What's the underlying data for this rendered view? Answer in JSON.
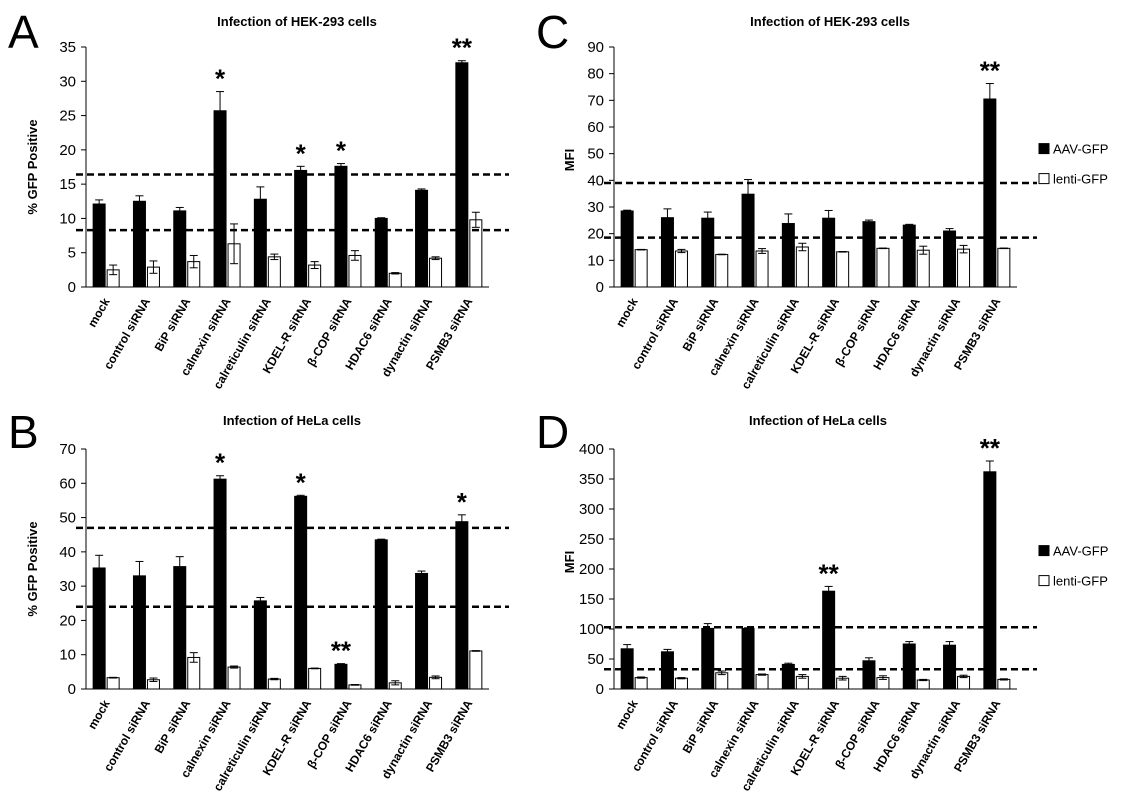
{
  "colors": {
    "aav": "#000000",
    "lenti": "#ffffff",
    "axis": "#000000",
    "dashed": "#000000"
  },
  "categories": [
    "mock",
    "control siRNA",
    "BiP siRNA",
    "calnexin siRNA",
    "calreticulin siRNA",
    "KDEL-R siRNA",
    "β-COP siRNA",
    "HDAC6 siRNA",
    "dynactin siRNA",
    "PSMB3 siRNA"
  ],
  "chart_data": [
    {
      "id": "A",
      "letter": "A",
      "type": "bar",
      "title": "Infection of HEK-293 cells",
      "ylabel": "% GFP Positive",
      "ylim": [
        0,
        35
      ],
      "yticks": [
        0,
        5,
        10,
        15,
        20,
        25,
        30,
        35
      ],
      "dashed_lines": [
        16.4,
        8.3
      ],
      "legend": null,
      "series": [
        {
          "name": "AAV-GFP",
          "values": [
            12.1,
            12.5,
            11.1,
            25.7,
            12.8,
            17.0,
            17.6,
            10.0,
            14.1,
            32.7
          ],
          "errors": [
            0.6,
            0.8,
            0.5,
            2.8,
            1.8,
            0.6,
            0.4,
            0.1,
            0.2,
            0.3
          ]
        },
        {
          "name": "lenti-GFP",
          "values": [
            2.5,
            2.9,
            3.7,
            6.3,
            4.4,
            3.2,
            4.6,
            2.0,
            4.2,
            9.8
          ],
          "errors": [
            0.7,
            0.9,
            0.9,
            2.9,
            0.4,
            0.5,
            0.7,
            0.1,
            0.2,
            1.1
          ]
        }
      ],
      "annotations": [
        "",
        "",
        "",
        "*",
        "",
        "*",
        "*",
        "",
        "",
        "**"
      ]
    },
    {
      "id": "C",
      "letter": "C",
      "type": "bar",
      "title": "Infection of HEK-293 cells",
      "ylabel": "MFI",
      "ylim": [
        0,
        90
      ],
      "yticks": [
        0,
        10,
        20,
        30,
        40,
        50,
        60,
        70,
        80,
        90
      ],
      "dashed_lines": [
        39,
        18.5
      ],
      "legend": [
        "AAV-GFP",
        "lenti-GFP"
      ],
      "series": [
        {
          "name": "AAV-GFP",
          "values": [
            28.5,
            26.0,
            25.8,
            34.8,
            23.8,
            25.8,
            24.5,
            23.2,
            21.0,
            70.5
          ],
          "errors": [
            0.3,
            3.3,
            2.3,
            5.5,
            3.6,
            2.9,
            0.6,
            0.3,
            0.9,
            5.8
          ]
        },
        {
          "name": "lenti-GFP",
          "values": [
            14.0,
            13.5,
            12.2,
            13.5,
            15.0,
            13.2,
            14.5,
            13.8,
            14.2,
            14.5
          ],
          "errors": [
            0.1,
            0.6,
            0.1,
            0.9,
            1.4,
            0.1,
            0.1,
            1.5,
            1.4,
            0.1
          ]
        }
      ],
      "annotations": [
        "",
        "",
        "",
        "",
        "",
        "",
        "",
        "",
        "",
        "**"
      ]
    },
    {
      "id": "B",
      "letter": "B",
      "type": "bar",
      "title": "Infection of HeLa cells",
      "ylabel": "% GFP Positive",
      "ylim": [
        0,
        70
      ],
      "yticks": [
        0,
        10,
        20,
        30,
        40,
        50,
        60,
        70
      ],
      "dashed_lines": [
        47,
        24
      ],
      "legend": null,
      "series": [
        {
          "name": "AAV-GFP",
          "values": [
            35.3,
            33.0,
            35.7,
            61.2,
            25.7,
            56.2,
            7.2,
            43.5,
            33.7,
            48.8
          ],
          "errors": [
            3.7,
            4.2,
            2.9,
            1.0,
            1.0,
            0.3,
            0.2,
            0.2,
            0.7,
            2.0
          ]
        },
        {
          "name": "lenti-GFP",
          "values": [
            3.3,
            2.7,
            9.2,
            6.4,
            2.9,
            6.0,
            1.2,
            1.8,
            3.4,
            11.1
          ],
          "errors": [
            0.1,
            0.5,
            1.4,
            0.3,
            0.2,
            0.1,
            0.1,
            0.6,
            0.4,
            0.1
          ]
        }
      ],
      "annotations": [
        "",
        "",
        "",
        "*",
        "",
        "*",
        "**",
        "",
        "",
        "*"
      ]
    },
    {
      "id": "D",
      "letter": "D",
      "type": "bar",
      "title": "Infection of HeLa cells",
      "ylabel": "MFI",
      "ylim": [
        0,
        400
      ],
      "yticks": [
        0,
        50,
        100,
        150,
        200,
        250,
        300,
        350,
        400
      ],
      "dashed_lines": [
        103,
        33
      ],
      "legend": [
        "AAV-GFP",
        "lenti-GFP"
      ],
      "series": [
        {
          "name": "AAV-GFP",
          "values": [
            67,
            62,
            101,
            101,
            41,
            163,
            47,
            75,
            73,
            362
          ],
          "errors": [
            7,
            4,
            8,
            1,
            2,
            8,
            5,
            4,
            6,
            18
          ]
        },
        {
          "name": "lenti-GFP",
          "values": [
            19,
            18,
            27,
            24,
            21,
            18,
            19,
            15,
            21,
            16
          ],
          "errors": [
            1,
            1,
            3,
            1,
            3,
            3,
            3,
            1,
            2,
            1
          ]
        }
      ],
      "annotations": [
        "",
        "",
        "",
        "",
        "",
        "**",
        "",
        "",
        "",
        "**"
      ]
    }
  ]
}
